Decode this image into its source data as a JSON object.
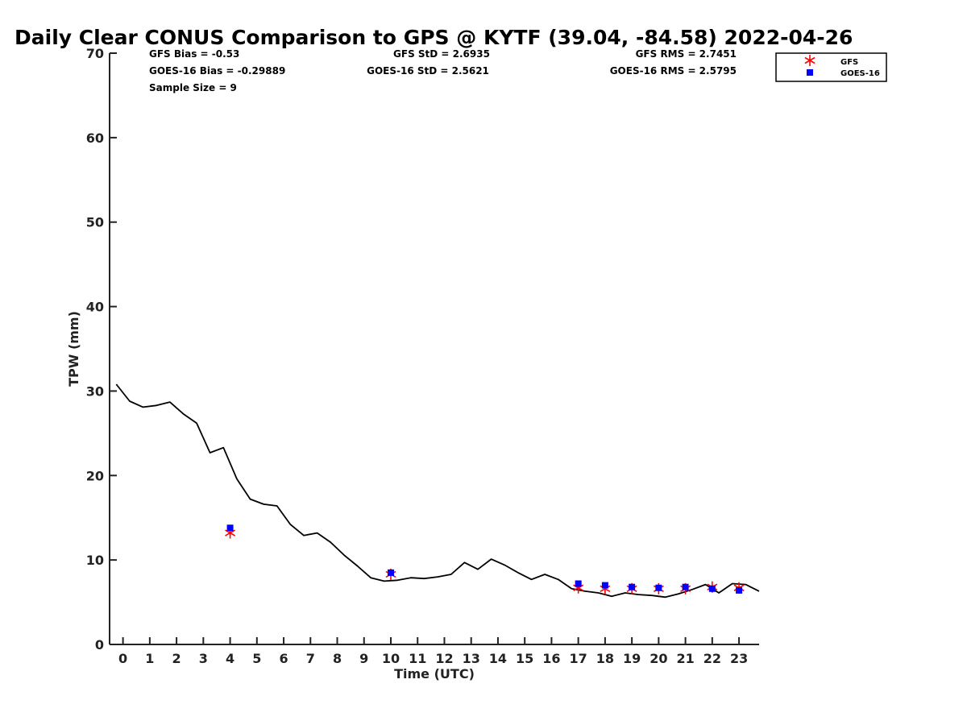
{
  "chart_data": {
    "type": "scatter",
    "title": "Daily Clear CONUS Comparison to GPS @ KYTF (39.04, -84.58) 2022-04-26",
    "xlabel": "Time (UTC)",
    "ylabel": "TPW (mm)",
    "xlim": [
      -0.5,
      23.75
    ],
    "ylim": [
      0,
      70
    ],
    "xticks": [
      0,
      1,
      2,
      3,
      4,
      5,
      6,
      7,
      8,
      9,
      10,
      11,
      12,
      13,
      14,
      15,
      16,
      17,
      18,
      19,
      20,
      21,
      22,
      23
    ],
    "yticks": [
      0,
      10,
      20,
      30,
      40,
      50,
      60,
      70
    ],
    "grid": false,
    "legend_position": "top-right, outside plot",
    "stats": {
      "gfs_bias": "GFS Bias = -0.53",
      "gfs_std": "GFS StD = 2.6935",
      "gfs_rms": "GFS RMS = 2.7451",
      "goes_bias": "GOES-16 Bias = -0.29889",
      "goes_std": "GOES-16 StD = 2.5621",
      "goes_rms": "GOES-16 RMS = 2.5795",
      "sample_size": "Sample Size = 9"
    },
    "series": [
      {
        "style": "line",
        "color": "#000000",
        "x": [
          -0.25,
          0.25,
          0.75,
          1.25,
          1.75,
          2.25,
          2.75,
          3.25,
          3.75,
          4.25,
          4.75,
          5.25,
          5.75,
          6.25,
          6.75,
          7.25,
          7.75,
          8.25,
          8.75,
          9.25,
          9.75,
          10.25,
          10.75,
          11.25,
          11.75,
          12.25,
          12.75,
          13.25,
          13.75,
          14.25,
          14.75,
          15.25,
          15.75,
          16.25,
          16.75,
          17.25,
          17.75,
          18.25,
          18.75,
          19.25,
          19.75,
          20.25,
          20.75,
          21.25,
          21.75,
          22.25,
          22.75,
          23.25,
          23.75
        ],
        "y": [
          30.8,
          28.8,
          28.1,
          28.3,
          28.7,
          27.3,
          26.2,
          22.7,
          23.3,
          19.6,
          17.2,
          16.6,
          16.4,
          14.2,
          12.9,
          13.2,
          12.1,
          10.6,
          9.3,
          7.9,
          7.5,
          7.6,
          7.9,
          7.8,
          8.0,
          8.3,
          9.7,
          8.9,
          10.1,
          9.4,
          8.5,
          7.7,
          8.3,
          7.7,
          6.6,
          6.3,
          6.1,
          5.7,
          6.1,
          5.9,
          5.8,
          5.6,
          6.0,
          6.5,
          7.1,
          6.1,
          7.2,
          7.1,
          6.3
        ]
      },
      {
        "name": "GFS",
        "style": "asterisk",
        "color": "#ff0000",
        "x": [
          4,
          10,
          17,
          18,
          19,
          20,
          21,
          22,
          23
        ],
        "y": [
          13.2,
          8.3,
          6.7,
          6.6,
          6.6,
          6.6,
          6.6,
          6.8,
          6.7
        ]
      },
      {
        "name": "GOES-16",
        "style": "square",
        "color": "#0000ff",
        "x": [
          4,
          10,
          17,
          18,
          19,
          20,
          21,
          22,
          23
        ],
        "y": [
          13.8,
          8.5,
          7.2,
          7.0,
          6.8,
          6.7,
          6.8,
          6.6,
          6.4
        ]
      }
    ]
  }
}
